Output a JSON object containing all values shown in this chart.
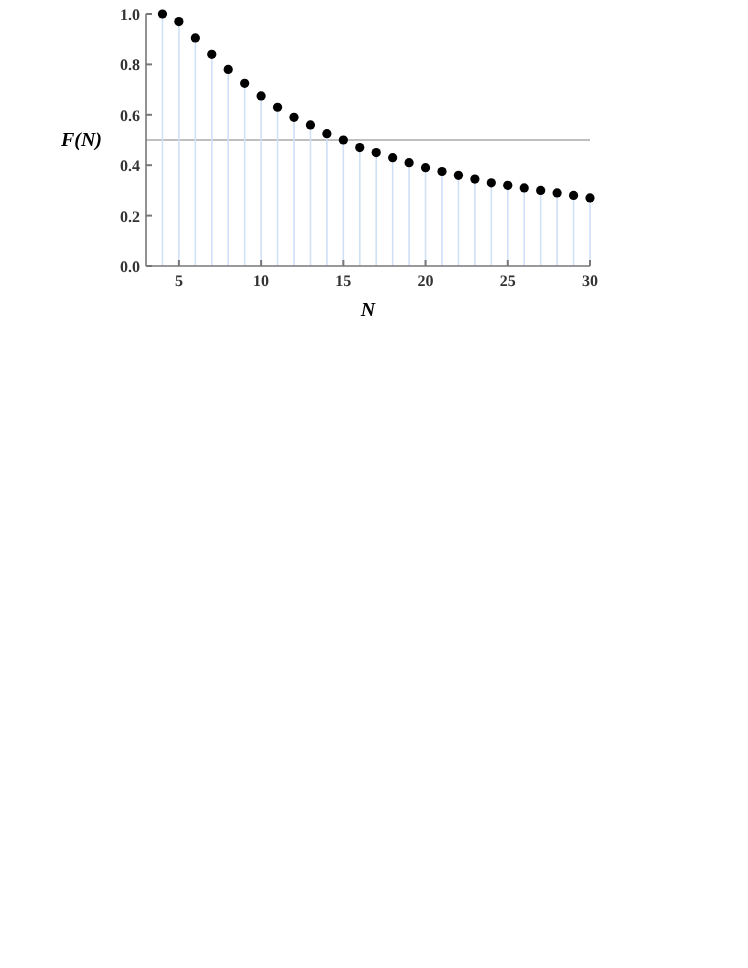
{
  "chart_data": {
    "type": "lollipop",
    "xlabel": "N",
    "ylabel": "F(N)",
    "x": [
      4,
      5,
      6,
      7,
      8,
      9,
      10,
      11,
      12,
      13,
      14,
      15,
      16,
      17,
      18,
      19,
      20,
      21,
      22,
      23,
      24,
      25,
      26,
      27,
      28,
      29,
      30
    ],
    "series": [
      {
        "color": "#000000",
        "values": [
          1.0,
          0.97,
          0.905,
          0.84,
          0.78,
          0.725,
          0.675,
          0.63,
          0.59,
          0.56,
          0.525,
          0.5,
          0.47,
          0.45,
          0.43,
          0.41,
          0.39,
          0.375,
          0.36,
          0.345,
          0.33,
          0.32,
          0.31,
          0.3,
          0.29,
          0.28,
          0.27
        ]
      }
    ],
    "xlim": [
      3,
      30
    ],
    "xticks": [
      5,
      10,
      15,
      20,
      25,
      30
    ],
    "ylim": [
      0,
      1.0
    ],
    "yticks": [
      {
        "value": 0,
        "label": "0.0"
      },
      0.2,
      0.4,
      0.6,
      0.8,
      {
        "value": 1,
        "label": "1.0"
      }
    ],
    "ref_lines": [
      {
        "axis": "y",
        "value": 0.5,
        "color": "#aaaaaa"
      }
    ],
    "marker": "circle"
  }
}
